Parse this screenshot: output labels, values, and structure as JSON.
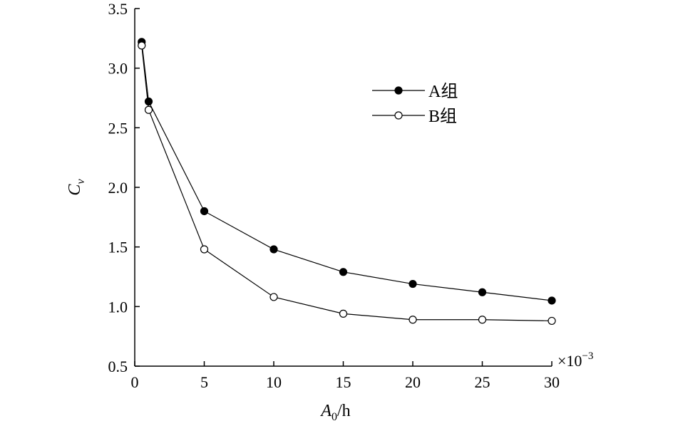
{
  "chart_data": {
    "type": "line",
    "title": "",
    "xlabel": "A0/h",
    "xlabel_parts": {
      "symbol": "A",
      "subscript": "0",
      "suffix": "/h"
    },
    "ylabel": "Cv",
    "ylabel_parts": {
      "symbol": "C",
      "subscript": "v"
    },
    "x_multiplier_label": "×10",
    "x_multiplier_exponent": "−3",
    "xlim": [
      0,
      30
    ],
    "ylim": [
      0.5,
      3.5
    ],
    "xticks": [
      0,
      5,
      10,
      15,
      20,
      25,
      30
    ],
    "xtick_labels": [
      "0",
      "5",
      "10",
      "15",
      "20",
      "25",
      "30"
    ],
    "yticks": [
      0.5,
      1.0,
      1.5,
      2.0,
      2.5,
      3.0,
      3.5
    ],
    "ytick_labels": [
      "0.5",
      "1.0",
      "1.5",
      "2.0",
      "2.5",
      "3.0",
      "3.5"
    ],
    "grid": false,
    "legend_position": "top-right",
    "x": [
      0.5,
      1,
      5,
      10,
      15,
      20,
      25,
      30
    ],
    "series": [
      {
        "name": "A组",
        "marker": "filled-circle",
        "color": "#000000",
        "values": [
          3.22,
          2.72,
          1.8,
          1.48,
          1.29,
          1.19,
          1.12,
          1.05
        ]
      },
      {
        "name": "B组",
        "marker": "open-circle",
        "color": "#000000",
        "values": [
          3.19,
          2.65,
          1.48,
          1.08,
          0.94,
          0.89,
          0.89,
          0.88
        ]
      }
    ]
  }
}
